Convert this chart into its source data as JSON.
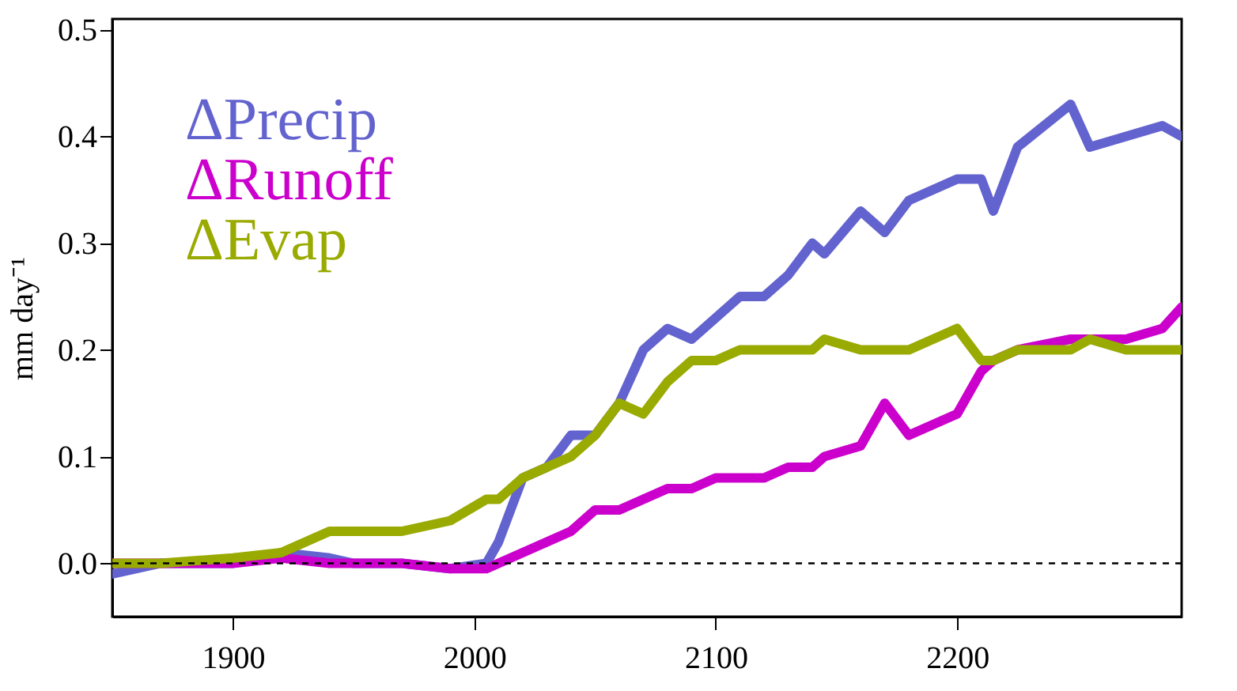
{
  "chart_data": {
    "type": "line",
    "ylabel": "mm day⁻¹",
    "xlim": [
      1850,
      2293
    ],
    "xticks": [
      1900,
      2000,
      2100,
      2200
    ],
    "ylim": [
      -0.05,
      0.51
    ],
    "yticks": [
      {
        "value": 0,
        "label": "0.0"
      },
      0.1,
      0.2,
      0.3,
      0.4,
      0.5
    ],
    "grid": false,
    "line_style": "solid",
    "ref_lines": [
      {
        "axis": "y",
        "value": 0,
        "line_style": "dashed",
        "color": "#000000"
      }
    ],
    "x": [
      1850,
      1870,
      1900,
      1920,
      1940,
      1950,
      1970,
      1990,
      2005,
      2010,
      2020,
      2030,
      2040,
      2050,
      2060,
      2070,
      2080,
      2090,
      2100,
      2110,
      2120,
      2130,
      2140,
      2145,
      2160,
      2170,
      2180,
      2200,
      2210,
      2215,
      2225,
      2247,
      2255,
      2270,
      2285,
      2293
    ],
    "series": [
      {
        "name": "ΔPrecip",
        "color": "#6363cf",
        "values": [
          -0.01,
          0.0,
          0.0,
          0.01,
          0.005,
          0.0,
          0.0,
          -0.005,
          0.0,
          0.02,
          0.08,
          0.09,
          0.12,
          0.12,
          0.15,
          0.2,
          0.22,
          0.21,
          0.23,
          0.25,
          0.25,
          0.27,
          0.3,
          0.29,
          0.33,
          0.31,
          0.34,
          0.36,
          0.36,
          0.33,
          0.39,
          0.43,
          0.39,
          0.4,
          0.41,
          0.4
        ]
      },
      {
        "name": "ΔRunoff",
        "color": "#cc00cc",
        "values": [
          0.0,
          0.0,
          0.0,
          0.005,
          0.0,
          0.0,
          0.0,
          -0.005,
          -0.005,
          0.0,
          0.01,
          0.02,
          0.03,
          0.05,
          0.05,
          0.06,
          0.07,
          0.07,
          0.08,
          0.08,
          0.08,
          0.09,
          0.09,
          0.1,
          0.11,
          0.15,
          0.12,
          0.14,
          0.18,
          0.19,
          0.2,
          0.21,
          0.21,
          0.21,
          0.22,
          0.24
        ]
      },
      {
        "name": "ΔEvap",
        "color": "#99aa00",
        "values": [
          0.0,
          0.0,
          0.005,
          0.01,
          0.03,
          0.03,
          0.03,
          0.04,
          0.06,
          0.06,
          0.08,
          0.09,
          0.1,
          0.12,
          0.15,
          0.14,
          0.17,
          0.19,
          0.19,
          0.2,
          0.2,
          0.2,
          0.2,
          0.21,
          0.2,
          0.2,
          0.2,
          0.22,
          0.19,
          0.19,
          0.2,
          0.2,
          0.21,
          0.2,
          0.2,
          0.2
        ]
      }
    ]
  }
}
